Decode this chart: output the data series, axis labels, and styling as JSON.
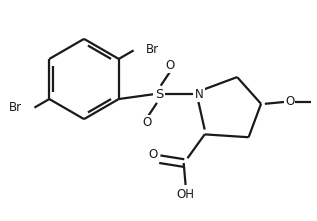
{
  "bg_color": "#ffffff",
  "line_color": "#1a1a1a",
  "line_width": 1.6,
  "font_size": 8.5,
  "xlim": [
    0,
    3.2
  ],
  "ylim": [
    0,
    2.3
  ]
}
